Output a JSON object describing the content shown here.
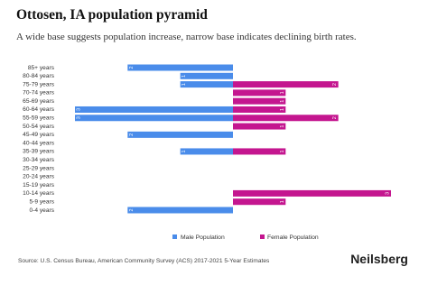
{
  "chart_data": {
    "type": "pyramid",
    "title": "Ottosen, IA population pyramid",
    "subtitle": "A wide base suggests population increase, narrow base indicates declining birth rates.",
    "categories": [
      "85+ years",
      "80-84 years",
      "75-79 years",
      "70-74 years",
      "65-69 years",
      "60-64 years",
      "55-59 years",
      "50-54 years",
      "45-49 years",
      "40-44 years",
      "35-39 years",
      "30-34 years",
      "25-29 years",
      "20-24 years",
      "15-19 years",
      "10-14 years",
      "5-9 years",
      "0-4 years"
    ],
    "series": [
      {
        "name": "Male Population",
        "color": "#4a8cea",
        "side": "left",
        "values": [
          2,
          1,
          1,
          0,
          0,
          3,
          3,
          0,
          2,
          0,
          1,
          0,
          0,
          0,
          0,
          0,
          0,
          2
        ]
      },
      {
        "name": "Female Population",
        "color": "#c4168f",
        "side": "right",
        "values": [
          0,
          0,
          2,
          1,
          1,
          1,
          2,
          1,
          0,
          0,
          1,
          0,
          0,
          0,
          0,
          3,
          1,
          0
        ]
      }
    ],
    "xlim": [
      -3,
      3
    ],
    "source": "Source: U.S. Census Bureau, American Community Survey (ACS) 2017-2021 5-Year Estimates",
    "brand": "Neilsberg"
  }
}
